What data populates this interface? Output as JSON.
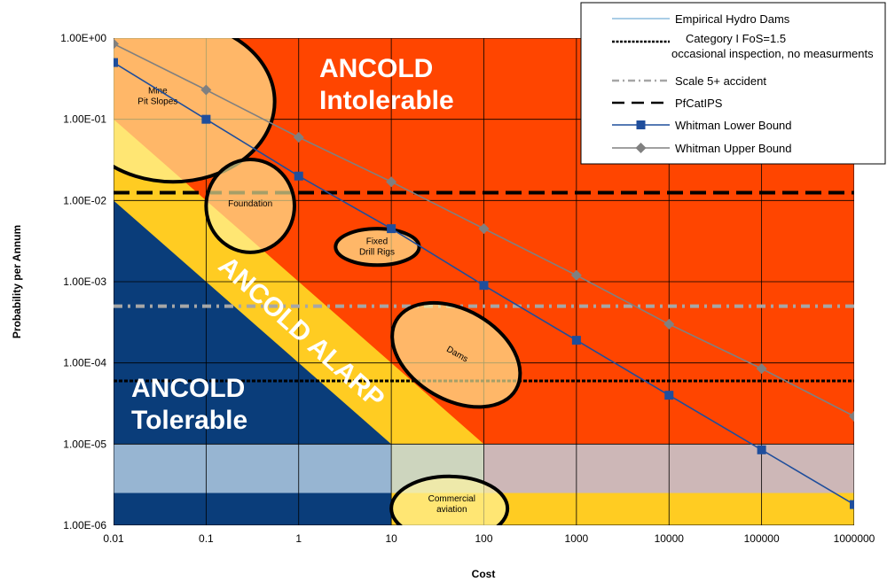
{
  "chart_data": {
    "type": "line",
    "x_scale": "log",
    "y_scale": "log",
    "xlabel": "Cost",
    "ylabel": "Probability per Annum",
    "xlim": [
      0.01,
      1000000
    ],
    "ylim": [
      1e-06,
      1
    ],
    "grid": true,
    "legend_position": "top-right",
    "x_ticks": [
      "0.01",
      "0.1",
      "1",
      "10",
      "100",
      "1000",
      "10000",
      "100000",
      "1000000"
    ],
    "y_ticks": [
      "1.00E+00",
      "1.00E-01",
      "1.00E-02",
      "1.00E-03",
      "1.00E-04",
      "1.00E-05",
      "1.00E-06"
    ],
    "zones": [
      {
        "name": "intolerable",
        "label_lines": [
          "ANCOLD",
          "Intolerable"
        ],
        "color": "#FF4500"
      },
      {
        "name": "alarp",
        "label": "ANCOLD ALARP",
        "color": "#FFCC22"
      },
      {
        "name": "tolerable",
        "label_lines": [
          "ANCOLD",
          "Tolerable"
        ],
        "color": "#0A3D7A"
      }
    ],
    "series": [
      {
        "name": "Empirical Hydro Dams",
        "style": "band",
        "color": "#BFD7EA",
        "y_range": [
          2.5e-06,
          1e-05
        ]
      },
      {
        "name": "Category I FoS=1.5 occasional inspection, no measurments",
        "style": "dotted",
        "color": "#000000",
        "y": 6e-05
      },
      {
        "name": "Scale 5+ accident",
        "style": "dashdot",
        "color": "#A6A6A6",
        "y": 0.0005
      },
      {
        "name": "PfCatIPS",
        "style": "dashed",
        "color": "#000000",
        "y": 0.0125
      },
      {
        "name": "Whitman Lower Bound",
        "style": "line-square",
        "color": "#1F4E9C",
        "x": [
          0.01,
          0.1,
          1,
          10,
          100,
          1000,
          10000,
          100000,
          1000000
        ],
        "values": [
          0.5,
          0.1,
          0.02,
          0.0045,
          0.0009,
          0.00019,
          4e-05,
          8.5e-06,
          1.8e-06
        ]
      },
      {
        "name": "Whitman Upper Bound",
        "style": "line-diamond",
        "color": "#808080",
        "x": [
          0.01,
          0.1,
          1,
          10,
          100,
          1000,
          10000,
          100000,
          1000000
        ],
        "values": [
          0.85,
          0.23,
          0.06,
          0.017,
          0.0045,
          0.0012,
          0.0003,
          8.5e-05,
          2.2e-05
        ]
      }
    ],
    "annotations": [
      {
        "name": "mine-pit-slopes",
        "lines": [
          "Mine",
          "Pit Slopes"
        ],
        "x": 0.03,
        "y": 0.18,
        "x_span": [
          0.0035,
          0.55
        ],
        "y_span": [
          0.017,
          1.6
        ],
        "rotate": 0
      },
      {
        "name": "foundation",
        "lines": [
          "Foundation"
        ],
        "x": 0.3,
        "y": 0.0085,
        "x_span": [
          0.1,
          0.9
        ],
        "y_span": [
          0.0023,
          0.032
        ],
        "rotate": 0
      },
      {
        "name": "fixed-drill-rigs",
        "lines": [
          "Fixed",
          "Drill Rigs"
        ],
        "x": 7,
        "y": 0.0025,
        "x_span": [
          2.5,
          20
        ],
        "y_span": [
          0.0016,
          0.0045
        ],
        "rotate": 0
      },
      {
        "name": "dams",
        "lines": [
          "Dams"
        ],
        "x": 50,
        "y": 0.00012,
        "x_span": [
          9,
          280
        ],
        "y_span": [
          3.5e-05,
          0.00045
        ],
        "rotate": 30
      },
      {
        "name": "commercial-aviation",
        "lines": [
          "Commercial",
          "aviation"
        ],
        "x": 45,
        "y": 1.7e-06,
        "x_span": [
          10,
          180
        ],
        "y_span": [
          6.5e-07,
          4e-06
        ],
        "rotate": 0
      }
    ]
  }
}
